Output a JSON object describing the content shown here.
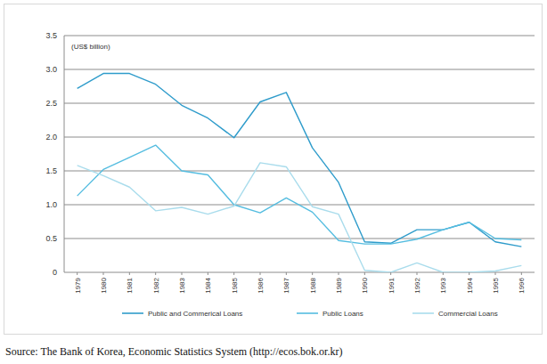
{
  "chart_data": {
    "type": "line",
    "y_label": "(US$ billion)",
    "source": "Source: The Bank of Korea, Economic Statistics System (http://ecos.bok.or.kr)",
    "categories": [
      "1979",
      "1980",
      "1981",
      "1982",
      "1983",
      "1984",
      "1985",
      "1986",
      "1987",
      "1988",
      "1989",
      "1990",
      "1991",
      "1992",
      "1993",
      "1994",
      "1995",
      "1996"
    ],
    "series": [
      {
        "name": "Public and Commerical Loans",
        "color": "#2f9ccb",
        "values": [
          2.72,
          2.94,
          2.94,
          2.78,
          2.47,
          2.28,
          1.99,
          2.52,
          2.66,
          1.84,
          1.33,
          0.45,
          0.43,
          0.63,
          0.63,
          0.74,
          0.45,
          0.38
        ]
      },
      {
        "name": "Public Loans",
        "color": "#55bde0",
        "values": [
          1.13,
          1.52,
          1.7,
          1.88,
          1.5,
          1.44,
          1.0,
          0.88,
          1.1,
          0.89,
          0.47,
          0.42,
          0.42,
          0.49,
          0.63,
          0.74,
          0.5,
          0.48
        ]
      },
      {
        "name": "Commercial Loans",
        "color": "#a9dcec",
        "values": [
          1.58,
          1.43,
          1.26,
          0.91,
          0.96,
          0.86,
          0.98,
          1.62,
          1.56,
          0.97,
          0.86,
          0.03,
          0.0,
          0.14,
          0.0,
          0.0,
          0.02,
          0.1
        ]
      }
    ],
    "ylim": [
      0,
      3.5
    ],
    "yticks": [
      0,
      0.5,
      {
        "value": 1,
        "label": "1.0"
      },
      1.5,
      {
        "value": 2,
        "label": "2.0"
      },
      2.5,
      {
        "value": 3,
        "label": "3.0"
      },
      3.5
    ],
    "grid": true,
    "legend": "bottom"
  }
}
